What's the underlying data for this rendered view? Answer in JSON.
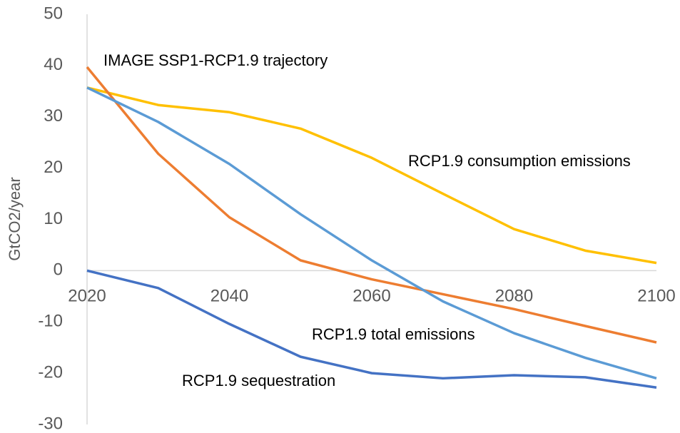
{
  "chart_data": {
    "type": "line",
    "y_label": "GtCO2/year",
    "x": [
      2020,
      2030,
      2040,
      2050,
      2060,
      2070,
      2080,
      2090,
      2100
    ],
    "xlim": [
      2020,
      2100
    ],
    "xticks": [
      2020,
      2040,
      2060,
      2080,
      2100
    ],
    "ylim": [
      -30,
      50
    ],
    "yticks": [
      -30,
      -20,
      -10,
      0,
      10,
      20,
      30,
      40,
      50
    ],
    "grid": false,
    "series": [
      {
        "name": "RCP1.9 consumption emissions",
        "color": "#FFC000",
        "values": [
          35.7,
          32.3,
          30.9,
          27.7,
          22,
          15,
          8.1,
          3.9,
          1.5
        ]
      },
      {
        "name": "IMAGE SSP1-RCP1.9 trajectory",
        "color": "#ED7D31",
        "values": [
          39.7,
          22.8,
          10.4,
          2,
          -1.7,
          -4.6,
          -7.5,
          -10.8,
          -14
        ]
      },
      {
        "name": "RCP1.9 total emissions",
        "color": "#5B9BD5",
        "values": [
          35.7,
          29,
          20.8,
          11,
          2,
          -6,
          -12.2,
          -17,
          -21
        ]
      },
      {
        "name": "RCP1.9 sequestration",
        "color": "#4472C4",
        "values": [
          0,
          -3.4,
          -10.4,
          -16.8,
          -20,
          -21,
          -20.4,
          -20.8,
          -22.8
        ]
      }
    ]
  }
}
